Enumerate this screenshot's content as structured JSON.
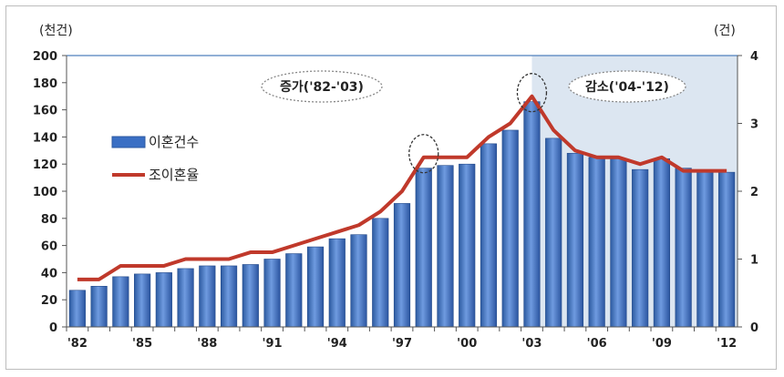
{
  "chart_data": {
    "type": "bar",
    "left_axis_unit": "(천건)",
    "right_axis_unit": "(건)",
    "years": [
      "'82",
      "'83",
      "'84",
      "'85",
      "'86",
      "'87",
      "'88",
      "'89",
      "'90",
      "'91",
      "'92",
      "'93",
      "'94",
      "'95",
      "'96",
      "'97",
      "'98",
      "'99",
      "'00",
      "'01",
      "'02",
      "'03",
      "'04",
      "'05",
      "'06",
      "'07",
      "'08",
      "'09",
      "'10",
      "'11",
      "'12"
    ],
    "x_tick_labels": [
      "'82",
      "'85",
      "'88",
      "'91",
      "'94",
      "'97",
      "'00",
      "'03",
      "'06",
      "'09",
      "'12"
    ],
    "y_left_ticks": [
      0,
      20,
      40,
      60,
      80,
      100,
      120,
      140,
      160,
      180,
      200
    ],
    "y_right_ticks": [
      0,
      1,
      2,
      3,
      4
    ],
    "ylim_left": [
      0,
      200
    ],
    "ylim_right": [
      0,
      4
    ],
    "series": [
      {
        "name": "이혼건수",
        "type": "bar",
        "axis": "left",
        "color": "#3a6fc4",
        "values": [
          27,
          30,
          37,
          39,
          40,
          43,
          45,
          45,
          46,
          50,
          54,
          59,
          65,
          68,
          80,
          91,
          117,
          119,
          120,
          135,
          145,
          166,
          139,
          128,
          125,
          124,
          116,
          124,
          117,
          114,
          114
        ]
      },
      {
        "name": "조이혼율",
        "type": "line",
        "axis": "right",
        "color": "#c0392b",
        "values": [
          0.7,
          0.7,
          0.9,
          0.9,
          0.9,
          1.0,
          1.0,
          1.0,
          1.1,
          1.1,
          1.2,
          1.3,
          1.4,
          1.5,
          1.7,
          2.0,
          2.5,
          2.5,
          2.5,
          2.8,
          3.0,
          3.4,
          2.9,
          2.6,
          2.5,
          2.5,
          2.4,
          2.5,
          2.3,
          2.3,
          2.3
        ]
      }
    ],
    "annotations": {
      "increase_label": "증가('82-'03)",
      "decrease_label": "감소('04-'12)",
      "shaded_region": [
        "'04",
        "'12"
      ],
      "circled_years": [
        "'98",
        "'03"
      ]
    },
    "legend_position": "left",
    "grid": false
  }
}
